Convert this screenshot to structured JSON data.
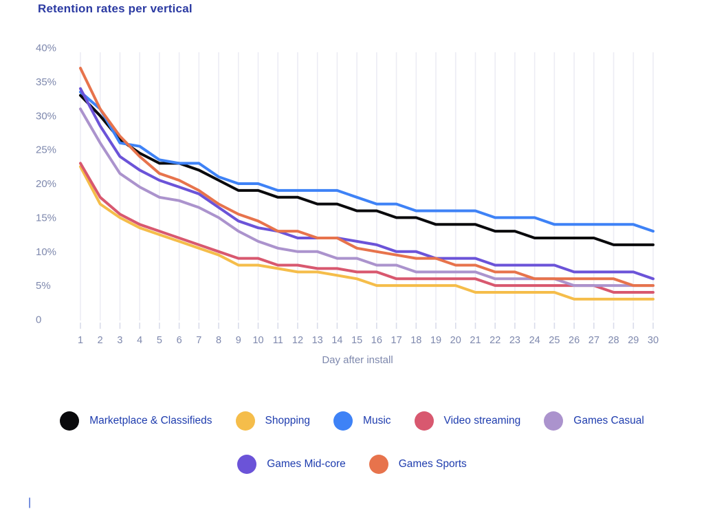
{
  "title": "Retention rates per vertical",
  "colors": {
    "title_text": "#2b3aa2",
    "axis_text": "#7e88ad",
    "legend_text": "#1e3cae",
    "gridline": "#ececf4",
    "tick_mark": "#d9dcea"
  },
  "y_axis": {
    "tick_labels": [
      "40%",
      "35%",
      "30%",
      "25%",
      "20%",
      "15%",
      "10%",
      "5%",
      "0"
    ]
  },
  "x_axis": {
    "label": "Day after install"
  },
  "legend": {
    "row_split": 5
  },
  "footer_mark": "|",
  "chart_data": {
    "type": "line",
    "title": "Retention rates per vertical",
    "xlabel": "Day after install",
    "ylabel": "",
    "x": [
      1,
      2,
      3,
      4,
      5,
      6,
      7,
      8,
      9,
      10,
      11,
      12,
      13,
      14,
      15,
      16,
      17,
      18,
      19,
      20,
      21,
      22,
      23,
      24,
      25,
      26,
      27,
      28,
      29,
      30
    ],
    "ylim": [
      0,
      40
    ],
    "y_tick_step": 5,
    "grid": "vertical-only",
    "legend_position": "bottom",
    "line_width": 4,
    "series": [
      {
        "name": "Marketplace & Classifieds",
        "color": "#0a0a0c",
        "values": [
          33,
          30,
          26.5,
          24.5,
          23,
          23,
          22,
          20.5,
          19,
          19,
          18,
          18,
          17,
          17,
          16,
          16,
          15,
          15,
          14,
          14,
          14,
          13,
          13,
          12,
          12,
          12,
          12,
          11,
          11,
          11
        ]
      },
      {
        "name": "Shopping",
        "color": "#f5bd4a",
        "values": [
          22.5,
          17,
          15,
          13.5,
          12.5,
          11.5,
          10.5,
          9.5,
          8,
          8,
          7.5,
          7,
          7,
          6.5,
          6,
          5,
          5,
          5,
          5,
          5,
          4,
          4,
          4,
          4,
          4,
          3,
          3,
          3,
          3,
          3
        ]
      },
      {
        "name": "Music",
        "color": "#3e82f6",
        "values": [
          33.5,
          31,
          26,
          25.5,
          23.5,
          23,
          23,
          21,
          20,
          20,
          19,
          19,
          19,
          19,
          18,
          17,
          17,
          16,
          16,
          16,
          16,
          15,
          15,
          15,
          14,
          14,
          14,
          14,
          14,
          13
        ]
      },
      {
        "name": "Video streaming",
        "color": "#d8586f",
        "values": [
          23,
          18,
          15.5,
          14,
          13,
          12,
          11,
          10,
          9,
          9,
          8,
          8,
          7.5,
          7.5,
          7,
          7,
          6,
          6,
          6,
          6,
          6,
          5,
          5,
          5,
          5,
          5,
          5,
          4,
          4,
          4
        ]
      },
      {
        "name": "Games Casual",
        "color": "#ab93cd",
        "values": [
          31,
          26,
          21.5,
          19.5,
          18,
          17.5,
          16.5,
          15,
          13,
          11.5,
          10.5,
          10,
          10,
          9,
          9,
          8,
          8,
          7,
          7,
          7,
          7,
          6,
          6,
          6,
          6,
          5,
          5,
          5,
          5,
          5
        ]
      },
      {
        "name": "Games Mid-core",
        "color": "#6b53d8",
        "values": [
          34,
          28.5,
          24,
          22,
          20.5,
          19.5,
          18.5,
          16.5,
          14.5,
          13.5,
          13,
          12,
          12,
          12,
          11.5,
          11,
          10,
          10,
          9,
          9,
          9,
          8,
          8,
          8,
          8,
          7,
          7,
          7,
          7,
          6
        ]
      },
      {
        "name": "Games Sports",
        "color": "#e7734c",
        "values": [
          37,
          31,
          27,
          24,
          21.5,
          20.5,
          19,
          17,
          15.5,
          14.5,
          13,
          13,
          12,
          12,
          10.5,
          10,
          9.5,
          9,
          9,
          8,
          8,
          7,
          7,
          6,
          6,
          6,
          6,
          6,
          5,
          5
        ]
      }
    ]
  }
}
